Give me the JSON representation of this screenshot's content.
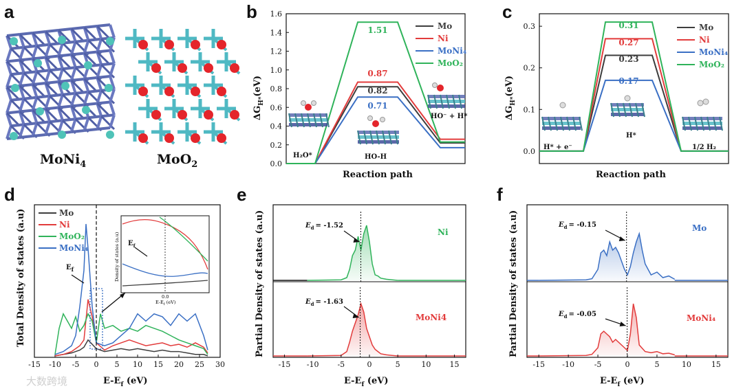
{
  "colors": {
    "Mo": "#3d3d3d",
    "Ni": "#e23b3b",
    "MoNi4": "#3a6fc4",
    "MoO2": "#2fb35a",
    "Mo_blue": "#3a6fc4",
    "inset_green": "#2fb35a"
  },
  "panel_a": {
    "label": "a",
    "caption_left_base": "MoNi",
    "caption_left_sub": "4",
    "caption_right_base": "MoO",
    "caption_right_sub": "2",
    "structures": [
      "MoNi4 crystal structure",
      "MoO2 crystal structure"
    ]
  },
  "panel_b": {
    "label": "b",
    "ylabel_base": "ΔG",
    "ylabel_sub": "H*",
    "ylabel_tail": "(eV)",
    "xlabel": "Reaction path",
    "steps": [
      "H₂O*",
      "HO-H",
      "HO⁻ + H*"
    ],
    "legend": [
      "Mo",
      "Ni",
      "MoNi₄",
      "MoO₂"
    ]
  },
  "panel_c": {
    "label": "c",
    "ylabel_base": "ΔG",
    "ylabel_sub": "H*",
    "ylabel_tail": "(eV)",
    "xlabel": "Reaction path",
    "steps": [
      "H* + e⁻",
      "H*",
      "1/2 H₂"
    ],
    "legend": [
      "Mo",
      "Ni",
      "MoNi₄",
      "MoO₂"
    ]
  },
  "panel_d": {
    "label": "d",
    "ylabel": "Total Density of states (a.u)",
    "xlabel": "E-E (eV)",
    "xlabel_base": "E-E",
    "xlabel_sub": "f",
    "xlabel_tail": " (eV)",
    "legend": [
      "Mo",
      "Ni",
      "MoO₂",
      "MoNi₄"
    ],
    "ef_label": "E",
    "ef_sub": "f",
    "inset": {
      "ylabel": "Density of states (a.u)",
      "xlabel": "E-E",
      "xlabel_sub": "f",
      "xlabel_tail": " (eV)",
      "tick": "0.0",
      "ef_label": "E",
      "ef_sub": "f"
    }
  },
  "panel_e": {
    "label": "e",
    "ylabel": "Partial Density of states (a.u)",
    "xlabel_base": "E-E",
    "xlabel_sub": "f",
    "xlabel_tail": " (eV)",
    "top_name": "Ni",
    "top_ed": "= -1.52",
    "bottom_name": "MoNi4",
    "bottom_ed": "= -1.63",
    "ed_base": "E",
    "ed_sub": "d"
  },
  "panel_f": {
    "label": "f",
    "ylabel": "Partial Density of states (a.u)",
    "xlabel_base": "E-E",
    "xlabel_sub": "f",
    "xlabel_tail": " (eV)",
    "top_name": "Mo",
    "top_ed": "= -0.15",
    "bottom_name": "MoNi₄",
    "bottom_ed": "= -0.05",
    "ed_base": "E",
    "ed_sub": "d"
  },
  "watermark": "大数跨境",
  "chart_data": [
    {
      "panel": "b",
      "type": "line",
      "title": "",
      "xlabel": "Reaction path",
      "ylabel": "ΔGH*(eV)",
      "categories": [
        "H₂O*",
        "HO-H",
        "HO⁻ + H*"
      ],
      "ylim": [
        0,
        1.6
      ],
      "yticks": [
        "0.0",
        "0.2",
        "0.4",
        "0.6",
        "0.8",
        "1.0",
        "1.2",
        "1.4",
        "1.6"
      ],
      "series": [
        {
          "name": "Mo",
          "values": [
            0,
            0.82,
            0.22
          ],
          "label": "0.82"
        },
        {
          "name": "Ni",
          "values": [
            0,
            0.87,
            0.26
          ],
          "label": "0.87"
        },
        {
          "name": "MoNi₄",
          "values": [
            0,
            0.71,
            0.17
          ],
          "label": "0.71"
        },
        {
          "name": "MoO₂",
          "values": [
            0,
            1.51,
            0.23
          ],
          "label": "1.51"
        }
      ]
    },
    {
      "panel": "c",
      "type": "line",
      "title": "",
      "xlabel": "Reaction path",
      "ylabel": "ΔGH*(eV)",
      "categories": [
        "H* + e⁻",
        "H*",
        "1/2 H₂"
      ],
      "ylim": [
        -0.03,
        0.33
      ],
      "yticks": [
        "0.0",
        "0.1",
        "0.2",
        "0.3"
      ],
      "series": [
        {
          "name": "Mo",
          "values": [
            0,
            0.23,
            0
          ],
          "label": "0.23"
        },
        {
          "name": "Ni",
          "values": [
            0,
            0.27,
            0
          ],
          "label": "0.27"
        },
        {
          "name": "MoNi₄",
          "values": [
            0,
            0.17,
            0
          ],
          "label": "0.17"
        },
        {
          "name": "MoO₂",
          "values": [
            0,
            0.31,
            0
          ],
          "label": "0.31"
        }
      ]
    },
    {
      "panel": "d",
      "type": "line",
      "xlabel": "E-Ef (eV)",
      "ylabel": "Total Density of states (a.u)",
      "xlim": [
        -15,
        30
      ],
      "xticks": [
        "-15",
        "-10",
        "-5",
        "0",
        "5",
        "10",
        "15",
        "20",
        "25",
        "30"
      ],
      "series": [
        {
          "name": "Mo",
          "x": [
            -10,
            -8,
            -6,
            -4,
            -3,
            -2,
            -1,
            0,
            2,
            4,
            6,
            8,
            10,
            12,
            14,
            16,
            18,
            20,
            22,
            24,
            26,
            27
          ],
          "y": [
            0.01,
            0.02,
            0.03,
            0.05,
            0.07,
            0.12,
            0.09,
            0.06,
            0.04,
            0.05,
            0.06,
            0.05,
            0.06,
            0.05,
            0.04,
            0.05,
            0.04,
            0.04,
            0.03,
            0.02,
            0.02,
            0.01
          ]
        },
        {
          "name": "Ni",
          "x": [
            -10,
            -8,
            -6,
            -4,
            -3,
            -2,
            -1,
            0,
            2,
            4,
            6,
            8,
            10,
            12,
            14,
            16,
            18,
            20,
            22,
            24,
            26,
            27
          ],
          "y": [
            0.01,
            0.02,
            0.04,
            0.08,
            0.12,
            0.4,
            0.28,
            0.1,
            0.05,
            0.08,
            0.1,
            0.12,
            0.1,
            0.08,
            0.09,
            0.1,
            0.08,
            0.09,
            0.07,
            0.1,
            0.07,
            0.03
          ]
        },
        {
          "name": "MoO₂",
          "x": [
            -10,
            -9,
            -8,
            -7,
            -6,
            -5,
            -4,
            -3,
            -2,
            -1,
            0,
            1,
            2,
            4,
            6,
            8,
            10,
            12,
            14,
            16,
            18,
            20,
            22,
            24,
            26,
            27
          ],
          "y": [
            0.02,
            0.2,
            0.3,
            0.25,
            0.2,
            0.28,
            0.18,
            0.22,
            0.3,
            0.25,
            0.1,
            0.3,
            0.2,
            0.22,
            0.18,
            0.2,
            0.18,
            0.22,
            0.2,
            0.18,
            0.15,
            0.12,
            0.1,
            0.08,
            0.06,
            0.02
          ]
        },
        {
          "name": "MoNi₄",
          "x": [
            -10,
            -8,
            -6,
            -5,
            -4,
            -3,
            -2.5,
            -2,
            -1.5,
            -1,
            0,
            2,
            4,
            6,
            8,
            10,
            12,
            14,
            16,
            18,
            20,
            22,
            24,
            26,
            27
          ],
          "y": [
            0.02,
            0.04,
            0.08,
            0.15,
            0.35,
            0.6,
            0.92,
            0.75,
            0.55,
            0.35,
            0.1,
            0.08,
            0.1,
            0.15,
            0.2,
            0.3,
            0.25,
            0.3,
            0.28,
            0.22,
            0.3,
            0.25,
            0.3,
            0.15,
            0.05
          ]
        }
      ]
    },
    {
      "panel": "e",
      "type": "area",
      "xlabel": "E-Ef (eV)",
      "ylabel": "Partial Density of states (a.u)",
      "xlim": [
        -17,
        17
      ],
      "xticks": [
        "-15",
        "-10",
        "-5",
        "0",
        "5",
        "10",
        "15"
      ],
      "series": [
        {
          "name": "Ni",
          "Ed": -1.52,
          "x": [
            -11,
            -5,
            -4,
            -3.5,
            -3,
            -2.5,
            -2,
            -1.5,
            -1,
            -0.5,
            0,
            0.5,
            1,
            1.5,
            2,
            3,
            4,
            5
          ],
          "y": [
            0,
            0.01,
            0.05,
            0.2,
            0.45,
            0.55,
            0.8,
            0.55,
            0.85,
            1.0,
            0.7,
            0.3,
            0.1,
            0.08,
            0.04,
            0.02,
            0.01,
            0
          ]
        },
        {
          "name": "MoNi4",
          "Ed": -1.63,
          "x": [
            -11,
            -5,
            -4,
            -3.5,
            -3,
            -2.5,
            -2,
            -1.5,
            -1,
            -0.5,
            0,
            0.5,
            1,
            1.5,
            2,
            3,
            4,
            5
          ],
          "y": [
            0,
            0.01,
            0.08,
            0.25,
            0.45,
            0.6,
            0.75,
            0.95,
            0.8,
            0.5,
            0.35,
            0.2,
            0.12,
            0.08,
            0.04,
            0.02,
            0.01,
            0
          ]
        }
      ]
    },
    {
      "panel": "f",
      "type": "area",
      "xlabel": "E-Ef (eV)",
      "ylabel": "Partial Density of states (a.u)",
      "xlim": [
        -17,
        17
      ],
      "xticks": [
        "-15",
        "-10",
        "-5",
        "0",
        "5",
        "10",
        "15"
      ],
      "series": [
        {
          "name": "Mo",
          "Ed": -0.15,
          "x": [
            -15,
            -7,
            -6,
            -5,
            -4.5,
            -4,
            -3.5,
            -3,
            -2.5,
            -2,
            -1.5,
            -1,
            -0.5,
            0,
            0.5,
            1,
            1.5,
            2,
            2.5,
            3,
            3.5,
            4,
            5,
            6,
            7,
            8
          ],
          "y": [
            0,
            0.01,
            0.03,
            0.2,
            0.5,
            0.55,
            0.45,
            0.7,
            0.55,
            0.6,
            0.5,
            0.35,
            0.2,
            0.1,
            0.25,
            0.5,
            0.7,
            0.85,
            0.55,
            0.3,
            0.2,
            0.1,
            0.15,
            0.05,
            0.08,
            0.02
          ]
        },
        {
          "name": "MoNi₄",
          "Ed": -0.05,
          "x": [
            -15,
            -7,
            -6,
            -5,
            -4.5,
            -4,
            -3.5,
            -3,
            -2.5,
            -2,
            -1.5,
            -1,
            -0.5,
            0,
            0.5,
            1,
            1.5,
            2,
            3,
            4,
            5,
            6,
            7,
            8
          ],
          "y": [
            0,
            0.01,
            0.03,
            0.15,
            0.4,
            0.45,
            0.4,
            0.35,
            0.25,
            0.3,
            0.25,
            0.2,
            0.15,
            0.1,
            0.4,
            0.95,
            0.7,
            0.2,
            0.08,
            0.06,
            0.08,
            0.04,
            0.05,
            0.02
          ]
        }
      ]
    }
  ]
}
